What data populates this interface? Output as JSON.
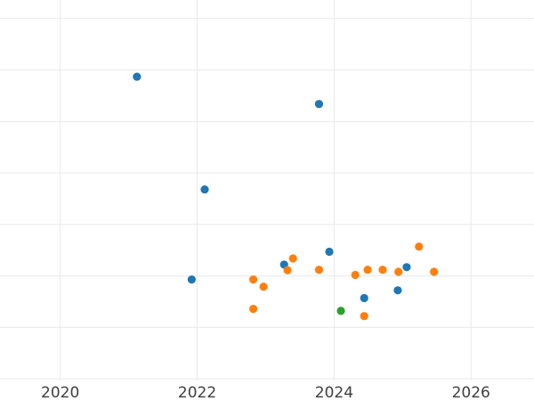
{
  "chart_data": {
    "type": "scatter",
    "title": "",
    "xlabel": "",
    "ylabel": "",
    "grid": true,
    "legend": false,
    "x_axis": {
      "tick_labels": [
        "2020",
        "2022",
        "2024",
        "2026"
      ],
      "tick_values": [
        2020,
        2022,
        2024,
        2026
      ],
      "range": [
        2019.12,
        2026.92
      ]
    },
    "y_axis": {
      "tick_labels": [],
      "gridline_values": [
        0,
        1,
        2,
        3,
        4,
        5,
        6,
        7
      ],
      "range": [
        -0.43,
        7.36
      ],
      "unit": "gridline steps (y-axis tick labels cropped offscreen)"
    },
    "marker_radius_px": 4.6,
    "series": [
      {
        "name": "blue",
        "color": "#1f77b4",
        "points": [
          [
            2021.12,
            5.87
          ],
          [
            2023.78,
            5.34
          ],
          [
            2022.11,
            3.68
          ],
          [
            2021.92,
            1.93
          ],
          [
            2023.27,
            2.22
          ],
          [
            2023.93,
            2.47
          ],
          [
            2024.44,
            1.57
          ],
          [
            2024.93,
            1.72
          ],
          [
            2025.06,
            2.17
          ]
        ]
      },
      {
        "name": "orange",
        "color": "#ff7f0e",
        "points": [
          [
            2022.82,
            1.93
          ],
          [
            2022.82,
            1.36
          ],
          [
            2022.97,
            1.79
          ],
          [
            2023.32,
            2.11
          ],
          [
            2023.4,
            2.34
          ],
          [
            2023.78,
            2.12
          ],
          [
            2024.31,
            2.02
          ],
          [
            2024.44,
            1.22
          ],
          [
            2024.49,
            2.12
          ],
          [
            2024.71,
            2.12
          ],
          [
            2024.94,
            2.08
          ],
          [
            2025.24,
            2.57
          ],
          [
            2025.46,
            2.08
          ]
        ]
      },
      {
        "name": "green",
        "color": "#2ca02c",
        "points": [
          [
            2024.1,
            1.32
          ]
        ]
      }
    ]
  },
  "style": {
    "background_color": "#ffffff",
    "gridline_color": "#e9e9e9",
    "tick_label_color": "#404040"
  }
}
